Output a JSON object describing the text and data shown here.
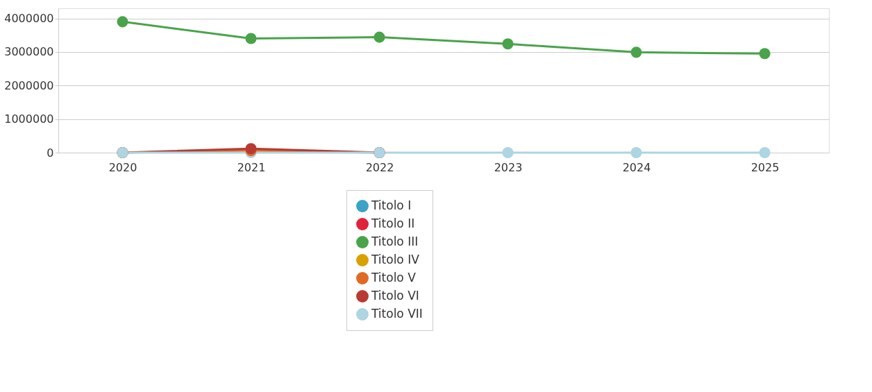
{
  "chart_data": {
    "type": "line",
    "categories": [
      "2020",
      "2021",
      "2022",
      "2023",
      "2024",
      "2025"
    ],
    "series": [
      {
        "name": "Titolo I",
        "color": "#3ba3c6",
        "values": [
          null,
          null,
          null,
          null,
          null,
          null
        ]
      },
      {
        "name": "Titolo II",
        "color": "#e0223a",
        "values": [
          null,
          null,
          null,
          null,
          null,
          null
        ]
      },
      {
        "name": "Titolo III",
        "color": "#4aa34a",
        "values": [
          3900000,
          3400000,
          3440000,
          3240000,
          2990000,
          2950000
        ]
      },
      {
        "name": "Titolo IV",
        "color": "#d9a000",
        "values": [
          null,
          null,
          null,
          null,
          null,
          null
        ]
      },
      {
        "name": "Titolo V",
        "color": "#e06a24",
        "values": [
          0,
          60000,
          0,
          null,
          null,
          null
        ]
      },
      {
        "name": "Titolo VI",
        "color": "#b83a32",
        "values": [
          0,
          120000,
          0,
          null,
          null,
          null
        ]
      },
      {
        "name": "Titolo VII",
        "color": "#add5e2",
        "values": [
          0,
          0,
          0,
          0,
          0,
          0
        ]
      }
    ],
    "ylim": [
      0,
      4300000
    ],
    "yticks": [
      0,
      1000000,
      2000000,
      3000000,
      4000000
    ],
    "grid": "y",
    "legend": "bottom",
    "marker": "circle",
    "line_style": "solid"
  }
}
